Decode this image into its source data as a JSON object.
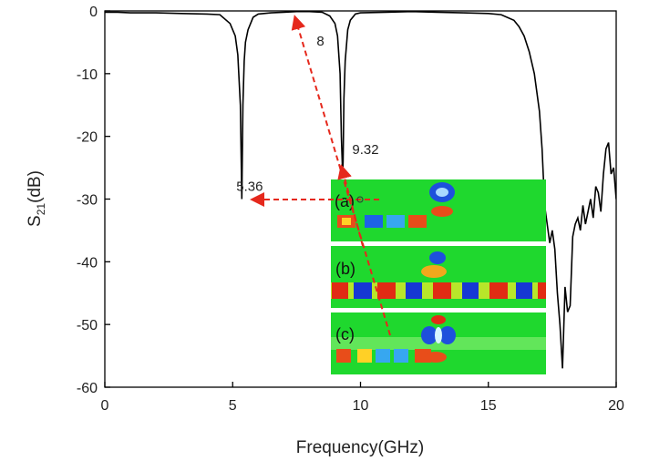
{
  "chart_data": {
    "type": "line",
    "xlabel": "Frequency(GHz)",
    "ylabel_main": "S",
    "ylabel_sub": "21",
    "ylabel_unit": "(dB)",
    "xlim": [
      0,
      20
    ],
    "ylim": [
      -60,
      0
    ],
    "xticks": [
      0,
      5,
      10,
      15,
      20
    ],
    "yticks": [
      0,
      -10,
      -20,
      -30,
      -40,
      -50,
      -60
    ],
    "grid": false,
    "series": [
      {
        "color": "#000000",
        "x": [
          0.0,
          0.5,
          1.0,
          2.0,
          3.0,
          4.0,
          4.5,
          4.9,
          5.1,
          5.2,
          5.3,
          5.36,
          5.4,
          5.45,
          5.5,
          5.6,
          5.8,
          6.0,
          6.5,
          7.0,
          7.5,
          8.0,
          8.5,
          8.8,
          9.0,
          9.1,
          9.2,
          9.25,
          9.3,
          9.32,
          9.35,
          9.4,
          9.5,
          9.6,
          9.8,
          10.0,
          11.0,
          12.0,
          13.0,
          14.0,
          15.0,
          15.5,
          16.0,
          16.2,
          16.4,
          16.6,
          16.8,
          17.0,
          17.1,
          17.2,
          17.3,
          17.4,
          17.5,
          17.6,
          17.7,
          17.8,
          17.9,
          18.0,
          18.1,
          18.2,
          18.3,
          18.4,
          18.5,
          18.6,
          18.7,
          18.8,
          18.9,
          19.0,
          19.1,
          19.2,
          19.3,
          19.4,
          19.5,
          19.6,
          19.7,
          19.8,
          19.9,
          20.0
        ],
        "y": [
          -0.2,
          -0.2,
          -0.3,
          -0.3,
          -0.4,
          -0.5,
          -0.6,
          -2.0,
          -4.0,
          -7.0,
          -15.0,
          -30.0,
          -15.0,
          -8.0,
          -5.0,
          -3.0,
          -1.0,
          -0.5,
          -0.3,
          -0.2,
          -0.1,
          -0.1,
          -0.2,
          -0.8,
          -2.0,
          -4.0,
          -10.0,
          -20.0,
          -26.0,
          -24.0,
          -14.0,
          -8.0,
          -3.0,
          -1.5,
          -0.5,
          -0.3,
          -0.2,
          -0.1,
          -0.2,
          -0.3,
          -0.4,
          -0.6,
          -1.5,
          -2.5,
          -4.0,
          -6.5,
          -10.0,
          -16.0,
          -22.0,
          -31.0,
          -34.0,
          -37.0,
          -35.0,
          -38.0,
          -45.0,
          -50.0,
          -57.0,
          -44.0,
          -48.0,
          -47.0,
          -36.0,
          -34.0,
          -33.0,
          -35.0,
          -31.0,
          -34.0,
          -32.0,
          -30.0,
          -33.0,
          -28.0,
          -29.0,
          -32.0,
          -26.0,
          -22.0,
          -21.0,
          -26.0,
          -25.0,
          -30.0
        ]
      }
    ],
    "annotations": [
      {
        "text": "8",
        "x": 7.5,
        "y": 0
      },
      {
        "text": "9.32",
        "x": 9.32,
        "y": -24
      },
      {
        "text": "5.36",
        "x": 5.36,
        "y": -30
      }
    ],
    "inset_labels": [
      "(a)",
      "(b)",
      "(c)"
    ]
  }
}
